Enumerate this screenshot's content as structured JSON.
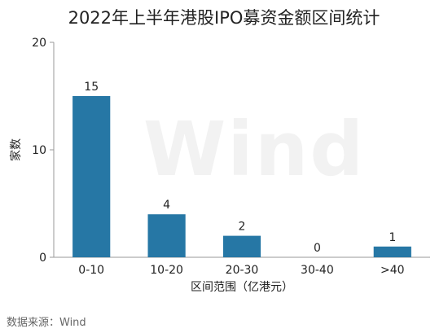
{
  "chart_data": {
    "type": "bar",
    "title": "2022年上半年港股IPO募资金额区间统计",
    "categories": [
      "0-10",
      "10-20",
      "20-30",
      "30-40",
      ">40"
    ],
    "values": [
      15,
      4,
      2,
      0,
      1
    ],
    "data_labels": [
      "15",
      "4",
      "2",
      "0",
      "1"
    ],
    "xlabel": "区间范围（亿港元）",
    "ylabel": "家数",
    "ylim": [
      0,
      20
    ],
    "yticks": [
      0,
      10,
      20
    ],
    "ytick_labels": [
      "0",
      "10",
      "20"
    ],
    "bar_color": "#2677a5",
    "grid": false,
    "legend": "none"
  },
  "watermark": "Wind",
  "source": "数据来源：Wind"
}
